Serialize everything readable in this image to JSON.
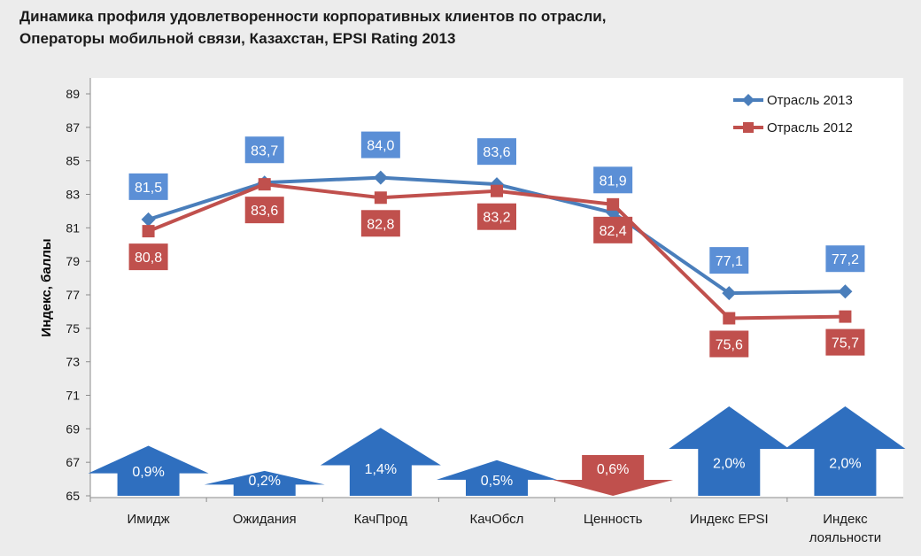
{
  "title_line1": "Динамика профиля удовлетворенности корпоративных клиентов по отрасли,",
  "title_line2": "Операторы мобильной связи, Казахстан, EPSI Rating 2013",
  "chart_data": {
    "type": "line",
    "categories": [
      [
        "Имидж"
      ],
      [
        "Ожидания"
      ],
      [
        "КачПрод"
      ],
      [
        "КачОбсл"
      ],
      [
        "Ценность"
      ],
      [
        "Индекс EPSI"
      ],
      [
        "Индекс",
        "лояльности"
      ]
    ],
    "ylabel": "Индекс, баллы",
    "ylim": [
      65,
      89
    ],
    "yticks": [
      "65",
      "67",
      "69",
      "71",
      "73",
      "75",
      "77",
      "79",
      "81",
      "83",
      "85",
      "87",
      "89"
    ],
    "grid": false,
    "legend_position": "top-right",
    "series": [
      {
        "name": "Отрасль 2013",
        "values": [
          81.5,
          83.7,
          84.0,
          83.6,
          81.9,
          77.1,
          77.2
        ],
        "labels": [
          "81,5",
          "83,7",
          "84,0",
          "83,6",
          "81,9",
          "77,1",
          "77,2"
        ],
        "color": "#4a7ebb",
        "label_bg": "#5b8fd6",
        "marker": "diamond"
      },
      {
        "name": "Отрасль 2012",
        "values": [
          80.8,
          83.6,
          82.8,
          83.2,
          82.4,
          75.6,
          75.7
        ],
        "labels": [
          "80,8",
          "83,6",
          "82,8",
          "83,2",
          "82,4",
          "75,6",
          "75,7"
        ],
        "color": "#c0504d",
        "label_bg": "#c0504d",
        "marker": "square"
      }
    ],
    "changes": [
      {
        "label": "0,9%",
        "value": 0.9,
        "direction": "up"
      },
      {
        "label": "0,2%",
        "value": 0.2,
        "direction": "up"
      },
      {
        "label": "1,4%",
        "value": 1.4,
        "direction": "up"
      },
      {
        "label": "0,5%",
        "value": 0.5,
        "direction": "up"
      },
      {
        "label": "0,6%",
        "value": 0.6,
        "direction": "down"
      },
      {
        "label": "2,0%",
        "value": 2.0,
        "direction": "up"
      },
      {
        "label": "2,0%",
        "value": 2.0,
        "direction": "up"
      }
    ],
    "up_color": "#2f6fbf",
    "down_color": "#c0504d"
  }
}
